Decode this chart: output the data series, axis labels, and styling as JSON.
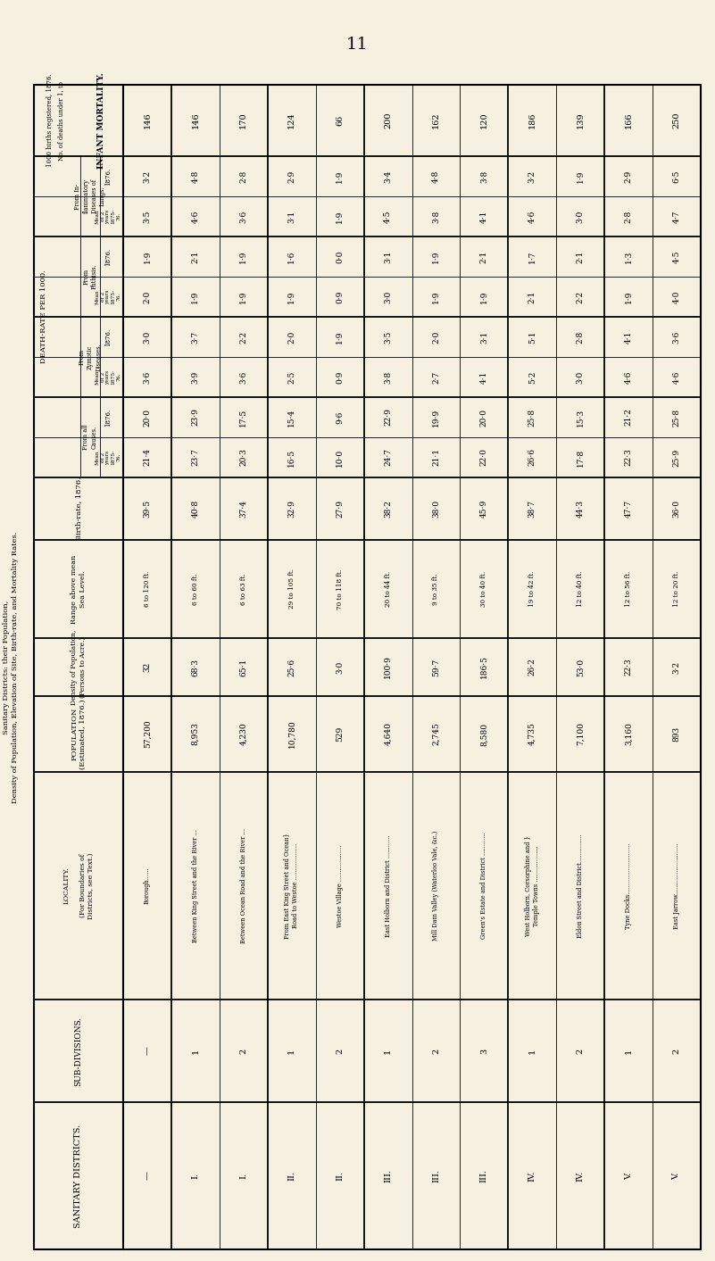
{
  "page_number": "11",
  "bg_color": "#f5f0e0",
  "infant_mortality": [
    "146",
    "146",
    "170",
    "124",
    "66",
    "200",
    "162",
    "120",
    "186",
    "139",
    "166",
    "250"
  ],
  "death_inflam_1876": [
    "3·2",
    "4·8",
    "2·8",
    "2·9",
    "1·9",
    "3·4",
    "4·8",
    "3·8",
    "3·2",
    "1·9",
    "2·9",
    "6·5"
  ],
  "death_inflam_mean": [
    "3·5",
    "4·6",
    "3·6",
    "3·1",
    "1·9",
    "4·5",
    "3·8",
    "4·1",
    "4·6",
    "3·0",
    "2·8",
    "4·7"
  ],
  "death_phthisis_1876": [
    "1·9",
    "2·1",
    "1·9",
    "1·6",
    "0·0",
    "3·1",
    "1·9",
    "2·1",
    "1·7",
    "2·1",
    "1·3",
    "4·5"
  ],
  "death_phthisis_mean": [
    "2·0",
    "1·9",
    "1·9",
    "1·9",
    "0·9",
    "3·0",
    "1·9",
    "1·9",
    "2·1",
    "2·2",
    "1·9",
    "4·0"
  ],
  "death_zymotic_1876": [
    "3·0",
    "3·7",
    "2·2",
    "2·0",
    "1·9",
    "3·5",
    "2·0",
    "3·1",
    "5·1",
    "2·8",
    "4·1",
    "3·6"
  ],
  "death_zymotic_mean": [
    "3·6",
    "3·9",
    "3·6",
    "2·5",
    "0·9",
    "3·8",
    "2·7",
    "4·1",
    "5·2",
    "3·0",
    "4·6",
    "4·6"
  ],
  "death_all_1876": [
    "20·0",
    "23·9",
    "17·5",
    "15·4",
    "9·6",
    "22·9",
    "19·9",
    "20·0",
    "25·8",
    "15·3",
    "21·2",
    "25·8"
  ],
  "death_all_mean": [
    "21·4",
    "23·7",
    "20·3",
    "16·5",
    "10·0",
    "24·7",
    "21·1",
    "22·0",
    "26·6",
    "17·8",
    "22·3",
    "25·9"
  ],
  "birth_rate_1876": [
    "39·5",
    "40·8",
    "37·4",
    "32·9",
    "27·9",
    "38·2",
    "38·0",
    "45·9",
    "38·7",
    "44·3",
    "47·7",
    "36·0"
  ],
  "elevation": [
    "6 to 120 ft.",
    "6 to 60 ft.",
    "6 to 63 ft.",
    "29 to 105 ft.",
    "70 to 118 ft.",
    "20 to 44 ft.",
    "9 to 35 ft.",
    "30 to 40 ft.",
    "19 to 42 ft.",
    "12 to 40 ft.",
    "12 to 56 ft.",
    "12 to 20 ft."
  ],
  "density": [
    "32",
    "68·3",
    "65·1",
    "25·6",
    "3·0",
    "100·9",
    "59·7",
    "186·5",
    "26·2",
    "53·0",
    "22·3",
    "3·2"
  ],
  "population": [
    "57,200",
    "8,953",
    "4,230",
    "10,780",
    "529",
    "4,640",
    "2,745",
    "8,580",
    "4,735",
    "7,100",
    "3,160",
    "893"
  ],
  "localities": [
    "Borough......",
    "Between King Street and the River ...",
    "Between Ocean Road and the River ...",
    "From East King Street and Ocean}\nRoad to Westoe ...................",
    "Westoe Village ...................",
    "East Holborn and District ............",
    "Mill Dam Valley (Waterloo Vale, &c.)",
    "Green's Estate and District ............",
    "West Holborn, Corsorphine and }\nTemple Towns ...................",
    "Eldon Street and District...............",
    "Tyne Docks...........................",
    "East Jarrow..........................."
  ],
  "sub_divs": [
    "—",
    "1",
    "2",
    "1",
    "2",
    "1",
    "2",
    "3",
    "1",
    "2",
    "1",
    "2"
  ],
  "san_districts": [
    "—",
    "I.",
    "I.",
    "II.",
    "II.",
    "III.",
    "III.",
    "III.",
    "IV.",
    "IV.",
    "V.",
    "V."
  ]
}
